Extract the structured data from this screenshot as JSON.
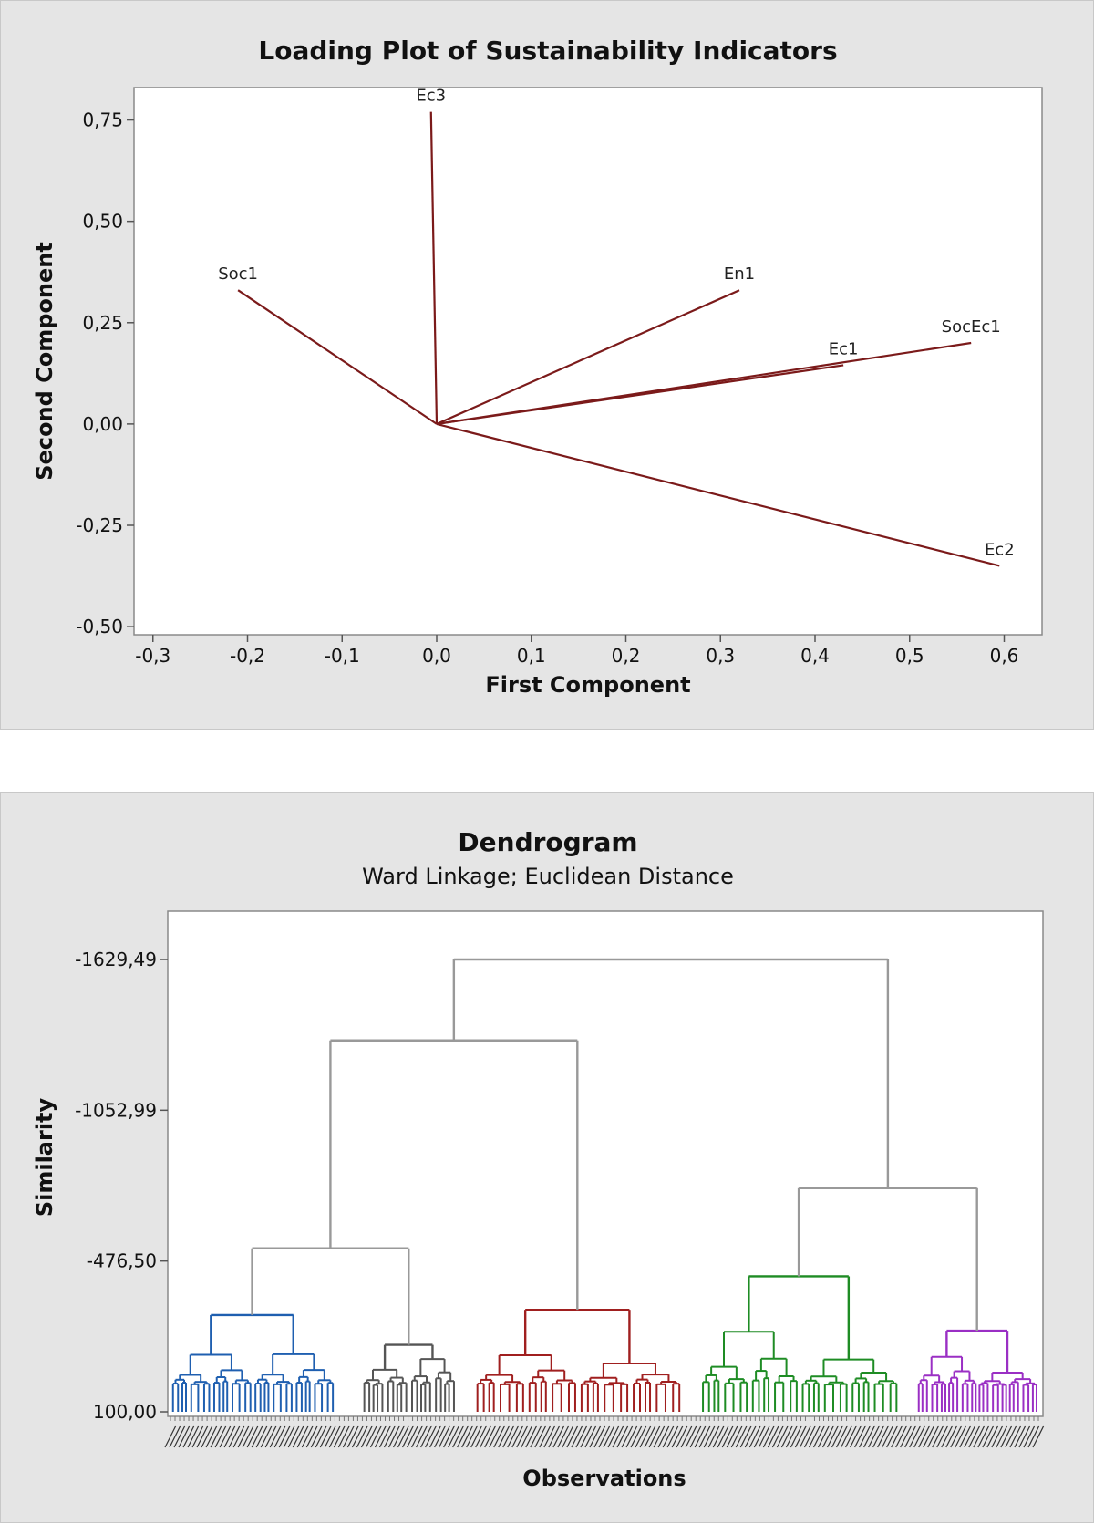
{
  "chart_data": [
    {
      "type": "line",
      "subtype": "loading-plot",
      "title": "Loading Plot of Sustainability Indicators",
      "xlabel": "First Component",
      "ylabel": "Second Component",
      "xlim": [
        -0.32,
        0.64
      ],
      "ylim": [
        -0.52,
        0.83
      ],
      "xticks": [
        -0.3,
        -0.2,
        -0.1,
        0.0,
        0.1,
        0.2,
        0.3,
        0.4,
        0.5,
        0.6
      ],
      "xtick_labels": [
        "-0,3",
        "-0,2",
        "-0,1",
        "0,0",
        "0,1",
        "0,2",
        "0,3",
        "0,4",
        "0,5",
        "0,6"
      ],
      "yticks": [
        0.75,
        0.5,
        0.25,
        0.0,
        -0.25,
        -0.5
      ],
      "ytick_labels": [
        "0,75",
        "0,50",
        "0,25",
        "0,00",
        "-0,25",
        "-0,50"
      ],
      "line_color": "#7b1a1a",
      "grid": false,
      "vectors": [
        {
          "label": "Ec3",
          "x": -0.006,
          "y": 0.77
        },
        {
          "label": "Soc1",
          "x": -0.21,
          "y": 0.33
        },
        {
          "label": "En1",
          "x": 0.32,
          "y": 0.33
        },
        {
          "label": "SocEc1",
          "x": 0.565,
          "y": 0.2
        },
        {
          "label": "Ec1",
          "x": 0.43,
          "y": 0.145
        },
        {
          "label": "Ec2",
          "x": 0.595,
          "y": -0.35
        }
      ]
    },
    {
      "type": "dendrogram",
      "title": "Dendrogram",
      "subtitle": "Ward Linkage; Euclidean Distance",
      "xlabel": "Observations",
      "ylabel": "Similarity",
      "ylim": [
        100.0,
        -1820.0
      ],
      "yticks": [
        -1629.49,
        -1052.99,
        -476.5,
        100.0
      ],
      "ytick_labels": [
        "-1629,49",
        "-1052,99",
        "-476,50",
        "100,00"
      ],
      "link_color": "#999999",
      "clusters": [
        {
          "color": "#1f5fb0",
          "top": -270,
          "mid": [
            -118,
            -120
          ],
          "x_range": [
            0.0,
            0.19
          ]
        },
        {
          "color": "#555555",
          "top": -156,
          "mid": [
            -61,
            -102
          ],
          "x_range": [
            0.22,
            0.33
          ]
        },
        {
          "color": "#a01f1f",
          "top": -290,
          "mid": [
            -116,
            -85
          ],
          "x_range": [
            0.35,
            0.59
          ]
        },
        {
          "color": "#1e8c24",
          "top": -418,
          "mid": [
            -206,
            -100
          ],
          "x_range": [
            0.61,
            0.84
          ]
        },
        {
          "color": "#9a2fc4",
          "top": -210,
          "mid": [
            -110,
            -50
          ],
          "x_range": [
            0.86,
            1.0
          ]
        }
      ],
      "merges": [
        {
          "left": [
            0,
            1
          ],
          "height": -525
        },
        {
          "left": [
            2
          ],
          "height": -1320
        },
        {
          "left": [
            3,
            4
          ],
          "height": -755
        },
        {
          "root": true,
          "height": -1629.49
        }
      ]
    }
  ]
}
